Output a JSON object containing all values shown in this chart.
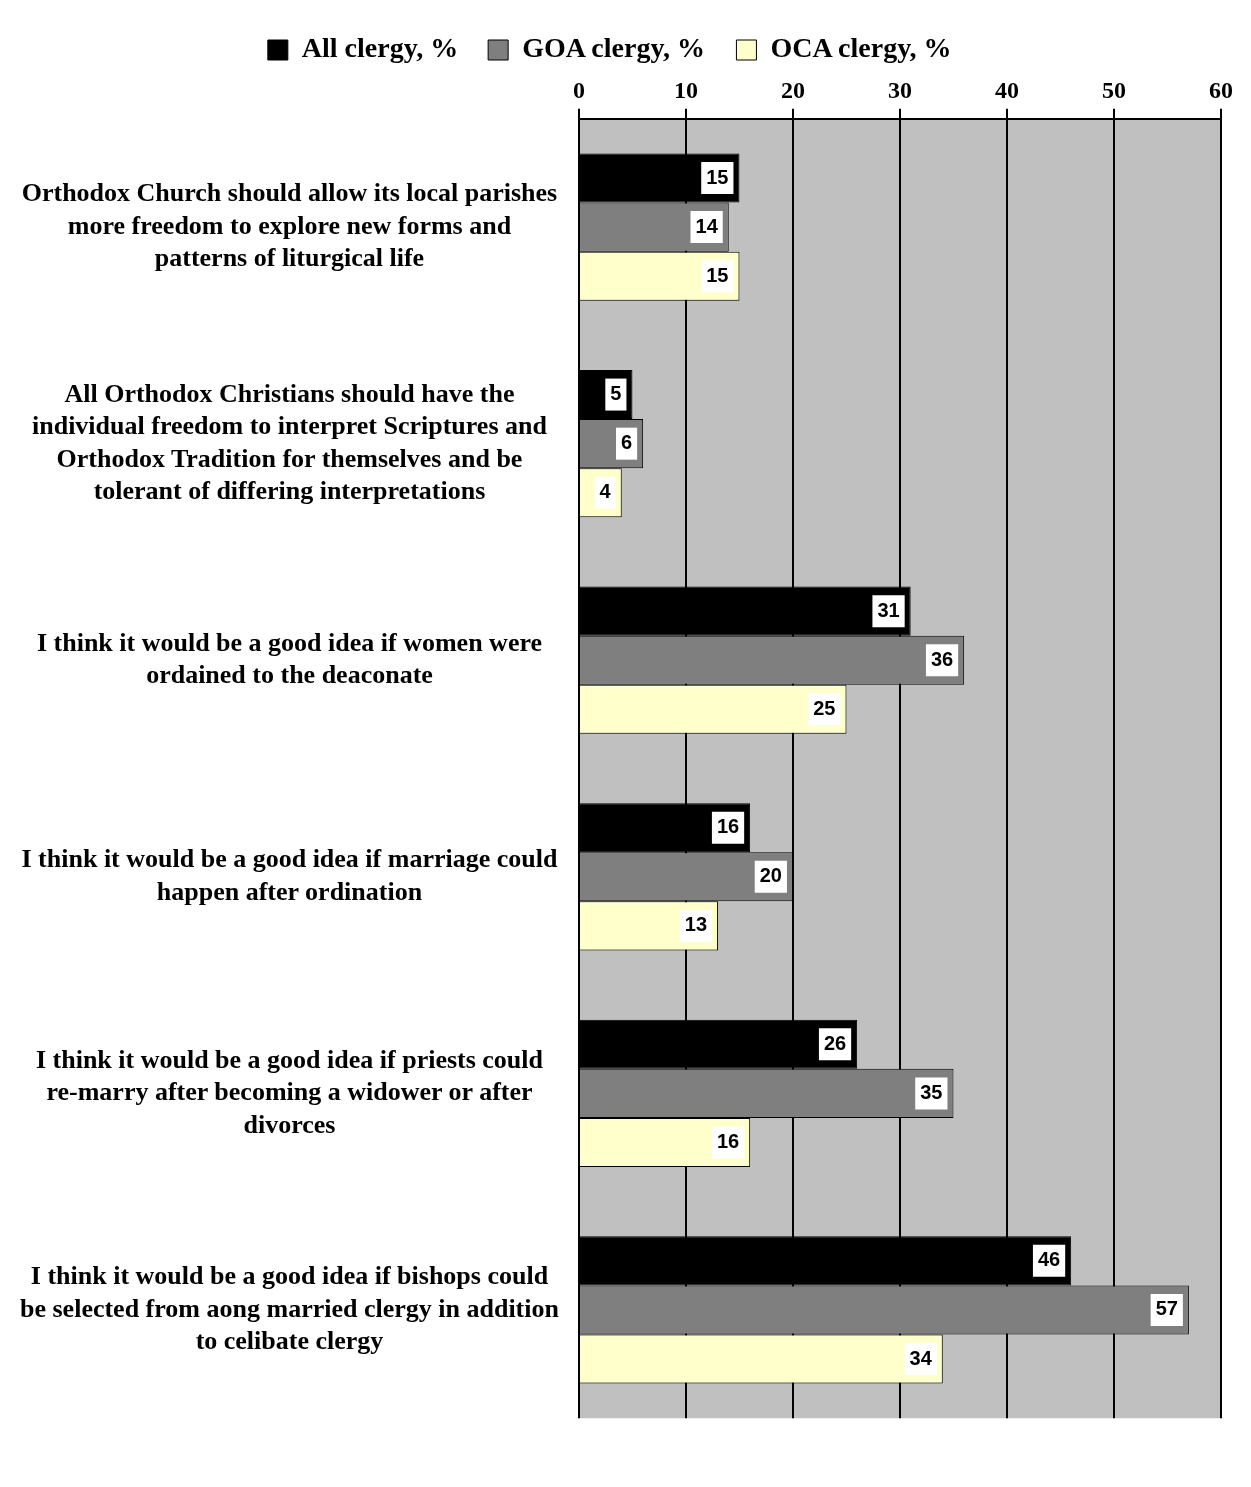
{
  "chart_data": {
    "type": "bar",
    "orientation": "horizontal",
    "categories": [
      "Orthodox Church should allow its local parishes more freedom to explore new forms and patterns of liturgical life",
      "All Orthodox Christians should have the individual freedom to interpret Scriptures and Orthodox Tradition for themselves and be tolerant of differing interpretations",
      "I think it would be a good idea if women were ordained to the deaconate",
      "I think it would be a good idea if marriage could happen after ordination",
      "I think it would be a good idea if priests could re-marry after becoming a widower or after divorces",
      "I think it would be a good idea if bishops could be selected from aong married clergy in addition to celibate clergy"
    ],
    "series": [
      {
        "name": "All clergy, %",
        "color": "#000000",
        "values": [
          15,
          5,
          31,
          16,
          26,
          46
        ]
      },
      {
        "name": "GOA clergy, %",
        "color": "#7f7f7f",
        "values": [
          14,
          6,
          36,
          20,
          35,
          57
        ]
      },
      {
        "name": "OCA clergy, %",
        "color": "#ffffcc",
        "values": [
          15,
          4,
          25,
          13,
          16,
          34
        ]
      }
    ],
    "xlim": [
      0,
      60
    ],
    "xticks": [
      0,
      10,
      20,
      30,
      40,
      50,
      60
    ],
    "grid": "x",
    "legend": "top",
    "data_labels": true
  }
}
